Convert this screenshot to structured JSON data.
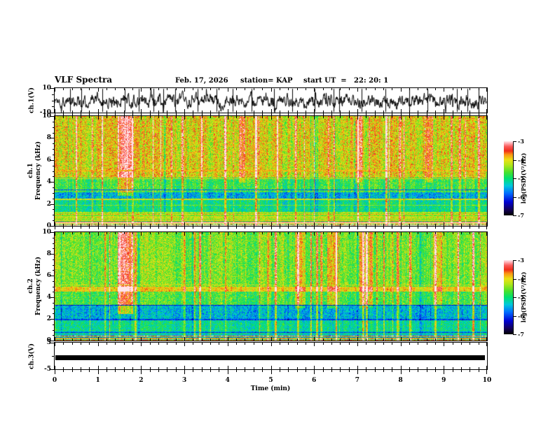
{
  "header": {
    "title": "VLF Spectra",
    "date": "Feb. 17, 2026",
    "station": "station= KAP",
    "start_ut": "start UT  =   22: 20: 1"
  },
  "x_axis": {
    "label": "Time (min)",
    "ticks": [
      "0",
      "1",
      "2",
      "3",
      "4",
      "5",
      "6",
      "7",
      "8",
      "9",
      "10"
    ],
    "minor_step_min": 0.2
  },
  "panels": {
    "ch1_wave": {
      "label": "ch.1(V)",
      "yticks": [
        "10",
        "-10"
      ]
    },
    "spec1": {
      "label_line1": "ch.1",
      "label_line2": "Frequency (kHz)",
      "yticks": [
        "0",
        "2",
        "4",
        "6",
        "8",
        "10"
      ]
    },
    "spec2": {
      "label_line1": "ch.2",
      "label_line2": "Frequency (kHz)",
      "yticks": [
        "0",
        "2",
        "4",
        "6",
        "8",
        "10"
      ]
    },
    "ch3": {
      "label": "ch.3(V)",
      "yticks": [
        "5",
        "-5"
      ]
    }
  },
  "colorbar": {
    "label": "log(PSD)(V²/Hz)",
    "ticks": [
      "-3",
      "-4",
      "-5",
      "-6",
      "-7"
    ]
  },
  "palette": {
    "background": "#ffffff",
    "frame": "#000000",
    "trace": "#000000",
    "stops": [
      [
        0.0,
        "#000000"
      ],
      [
        0.08,
        "#14005a"
      ],
      [
        0.18,
        "#0000d2"
      ],
      [
        0.3,
        "#006eff"
      ],
      [
        0.4,
        "#00c8dc"
      ],
      [
        0.5,
        "#00e16e"
      ],
      [
        0.58,
        "#46e12d"
      ],
      [
        0.68,
        "#b4e619"
      ],
      [
        0.75,
        "#ebe114"
      ],
      [
        0.82,
        "#fa9614"
      ],
      [
        0.87,
        "#f02d19"
      ],
      [
        0.93,
        "#fa5a5a"
      ],
      [
        0.97,
        "#ffaaaf"
      ],
      [
        1.0,
        "#ffe6eb"
      ]
    ]
  },
  "chart_data": [
    {
      "type": "line",
      "name": "ch1-waveform",
      "ylabel": "ch.1(V)",
      "ylim": [
        -10,
        10
      ],
      "xlim_min": [
        0,
        10
      ],
      "description": "broadband noisy VLF channel-1 voltage trace filling most of the ±10 V range",
      "seed": 1337,
      "smooth": 0.62,
      "noise_amp": 7.5,
      "spike_prob": 0.03,
      "spike_amp": 16,
      "deep_spike_times_min": [
        0.36,
        0.62,
        1.1,
        1.62,
        1.95,
        2.28,
        2.52,
        2.78,
        3.3,
        3.75,
        4.12,
        4.55,
        5.08,
        5.5,
        6.02,
        6.45,
        6.58,
        7.1,
        7.65,
        8.2,
        8.62,
        9.3,
        9.55,
        9.8
      ]
    },
    {
      "type": "heatmap",
      "name": "ch1-spectrogram",
      "ylabel": "ch.1 Frequency (kHz)",
      "ylim": [
        0,
        10
      ],
      "xlim_min": [
        0,
        10
      ],
      "value_scale": "log(PSD)(V²/Hz)",
      "value_range": [
        -7,
        -3
      ],
      "seed": 2024,
      "streak_prob": 0.05,
      "dark_streak_prob": 0.03,
      "bands": [
        {
          "f": [
            4.45,
            10.0
          ],
          "mean": -4.05,
          "noise": 0.55,
          "col": 0.55,
          "rowAmp": 0
        },
        {
          "f": [
            3.1,
            4.45
          ],
          "mean": -4.75,
          "noise": 0.5,
          "col": 0.5,
          "rowAmp": 0
        },
        {
          "f": [
            2.5,
            3.1
          ],
          "mean": -5.5,
          "noise": 0.5,
          "col": 0.35,
          "rowAmp": 0
        },
        {
          "f": [
            1.3,
            2.5
          ],
          "mean": -5.05,
          "noise": 0.45,
          "col": 0.4,
          "rowAmp": 0
        },
        {
          "f": [
            0.55,
            1.3
          ],
          "mean": -4.35,
          "noise": 0.35,
          "col": 0.2,
          "rowAmp": 0.5
        },
        {
          "f": [
            0.0,
            0.55
          ],
          "mean": -4.1,
          "noise": 0.3,
          "col": 0.12,
          "rowAmp": 1.5
        }
      ],
      "lines": [
        {
          "f": 5.05,
          "hw": 0.07,
          "v": -3.85
        },
        {
          "f": 4.33,
          "hw": 0.06,
          "v": -4.0
        },
        {
          "f": 3.3,
          "hw": 0.04,
          "v": -5.9
        },
        {
          "f": 2.44,
          "hw": 0.08,
          "v": -4.15
        },
        {
          "f": 1.9,
          "hw": 0.05,
          "v": -4.45
        }
      ],
      "events": [
        {
          "t": [
            1.45,
            1.8
          ],
          "f": [
            2.8,
            10
          ],
          "boost": 0.9
        },
        {
          "t": [
            4.25,
            4.4
          ],
          "f": [
            4.0,
            10
          ],
          "boost": 0.6
        },
        {
          "t": [
            6.95,
            7.1
          ],
          "f": [
            4.0,
            10
          ],
          "boost": 0.6
        },
        {
          "t": [
            8.55,
            8.75
          ],
          "f": [
            4.0,
            10
          ],
          "boost": 0.55
        }
      ]
    },
    {
      "type": "heatmap",
      "name": "ch2-spectrogram",
      "ylabel": "ch.2 Frequency (kHz)",
      "ylim": [
        0,
        10
      ],
      "xlim_min": [
        0,
        10
      ],
      "value_scale": "log(PSD)(V²/Hz)",
      "value_range": [
        -7,
        -3
      ],
      "seed": 777,
      "streak_prob": 0.045,
      "dark_streak_prob": 0.03,
      "bands": [
        {
          "f": [
            5.0,
            10.0
          ],
          "mean": -4.5,
          "noise": 0.5,
          "col": 0.5,
          "rowAmp": 0
        },
        {
          "f": [
            4.55,
            5.0
          ],
          "mean": -3.95,
          "noise": 0.35,
          "col": 0.3,
          "rowAmp": 0
        },
        {
          "f": [
            3.3,
            4.55
          ],
          "mean": -4.7,
          "noise": 0.5,
          "col": 0.45,
          "rowAmp": 0
        },
        {
          "f": [
            2.0,
            3.3
          ],
          "mean": -5.45,
          "noise": 0.5,
          "col": 0.35,
          "rowAmp": 0
        },
        {
          "f": [
            1.0,
            2.0
          ],
          "mean": -5.1,
          "noise": 0.45,
          "col": 0.35,
          "rowAmp": 0
        },
        {
          "f": [
            0.5,
            1.0
          ],
          "mean": -5.3,
          "noise": 0.4,
          "col": 0.3,
          "rowAmp": 0.4
        },
        {
          "f": [
            0.0,
            0.5
          ],
          "mean": -4.9,
          "noise": 0.35,
          "col": 0.15,
          "rowAmp": 1.8
        }
      ],
      "lines": [
        {
          "f": 5.15,
          "hw": 0.04,
          "v": -4.1
        },
        {
          "f": 3.28,
          "hw": 0.05,
          "v": -6.2
        },
        {
          "f": 1.95,
          "hw": 0.05,
          "v": -6.0
        },
        {
          "f": 0.75,
          "hw": 0.04,
          "v": -6.0
        }
      ],
      "events": [
        {
          "t": [
            1.45,
            1.8
          ],
          "f": [
            2.5,
            10
          ],
          "boost": 1.2
        },
        {
          "t": [
            5.55,
            5.8
          ],
          "f": [
            3.0,
            10
          ],
          "boost": 0.7
        },
        {
          "t": [
            6.3,
            6.55
          ],
          "f": [
            3.0,
            10
          ],
          "boost": 0.7
        },
        {
          "t": [
            7.05,
            7.35
          ],
          "f": [
            3.0,
            10
          ],
          "boost": 0.6
        },
        {
          "t": [
            8.75,
            8.95
          ],
          "f": [
            3.0,
            10
          ],
          "boost": 0.5
        }
      ]
    },
    {
      "type": "line",
      "name": "ch3-waveform",
      "ylabel": "ch.3(V)",
      "ylim": [
        -5,
        5
      ],
      "xlim_min": [
        0,
        10
      ],
      "description": "flat saturated channel-3 trace, solid black band spanning full record",
      "band_v": [
        0.3,
        -1.6
      ]
    }
  ]
}
